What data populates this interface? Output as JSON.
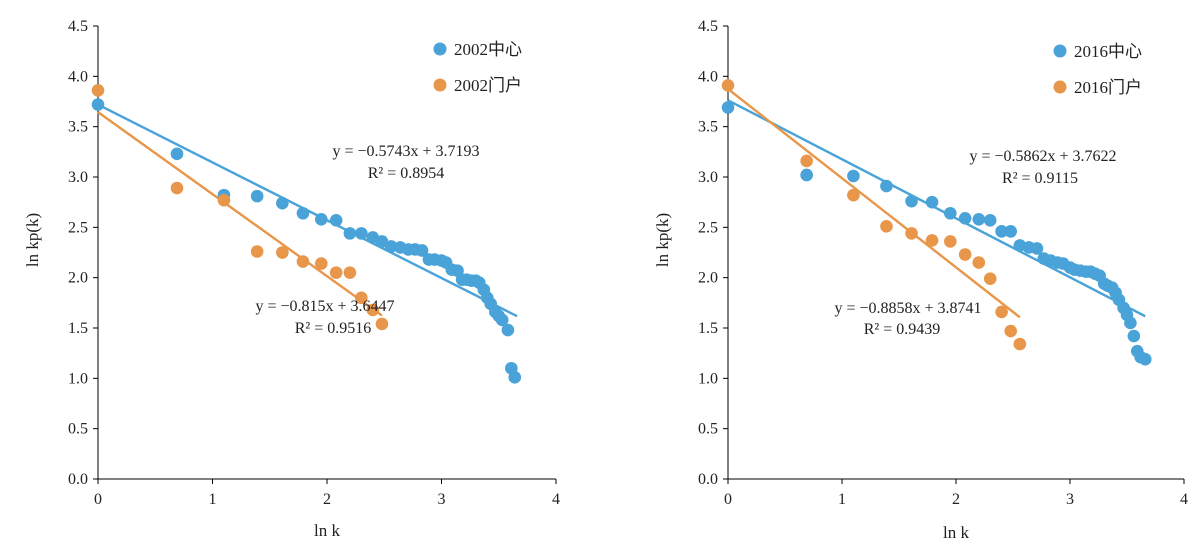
{
  "chart_data": [
    {
      "type": "scatter",
      "xlabel": "ln k",
      "ylabel": "ln kp(k)",
      "xlim": [
        0,
        4
      ],
      "ylim": [
        0,
        4.5
      ],
      "x_ticks": [
        "0",
        "1",
        "2",
        "3",
        "4"
      ],
      "y_ticks": [
        "0.0",
        "0.5",
        "1.0",
        "1.5",
        "2.0",
        "2.5",
        "3.0",
        "3.5",
        "4.0",
        "4.5"
      ],
      "grid": false,
      "legend_position": "top-right",
      "series": [
        {
          "name": "2002中心",
          "color": "#4aa3d8",
          "points": [
            [
              0,
              3.72
            ],
            [
              0.69,
              3.23
            ],
            [
              1.1,
              2.82
            ],
            [
              1.39,
              2.81
            ],
            [
              1.61,
              2.74
            ],
            [
              1.79,
              2.64
            ],
            [
              1.95,
              2.58
            ],
            [
              2.08,
              2.57
            ],
            [
              2.2,
              2.44
            ],
            [
              2.3,
              2.44
            ],
            [
              2.4,
              2.4
            ],
            [
              2.48,
              2.36
            ],
            [
              2.56,
              2.31
            ],
            [
              2.64,
              2.3
            ],
            [
              2.71,
              2.28
            ],
            [
              2.77,
              2.28
            ],
            [
              2.83,
              2.27
            ],
            [
              2.89,
              2.18
            ],
            [
              2.94,
              2.18
            ],
            [
              3.0,
              2.17
            ],
            [
              3.04,
              2.15
            ],
            [
              3.09,
              2.08
            ],
            [
              3.14,
              2.07
            ],
            [
              3.18,
              1.98
            ],
            [
              3.22,
              1.98
            ],
            [
              3.26,
              1.97
            ],
            [
              3.3,
              1.97
            ],
            [
              3.33,
              1.95
            ],
            [
              3.37,
              1.88
            ],
            [
              3.4,
              1.8
            ],
            [
              3.43,
              1.74
            ],
            [
              3.47,
              1.66
            ],
            [
              3.5,
              1.62
            ],
            [
              3.53,
              1.58
            ],
            [
              3.58,
              1.48
            ],
            [
              3.61,
              1.1
            ],
            [
              3.64,
              1.01
            ]
          ],
          "fit": {
            "slope": -0.5743,
            "intercept": 3.7193,
            "x_range": [
              0,
              3.66
            ]
          }
        },
        {
          "name": "2002门户",
          "color": "#e8964a",
          "points": [
            [
              0,
              3.86
            ],
            [
              0.69,
              2.89
            ],
            [
              1.1,
              2.77
            ],
            [
              1.39,
              2.26
            ],
            [
              1.61,
              2.25
            ],
            [
              1.79,
              2.16
            ],
            [
              1.95,
              2.14
            ],
            [
              2.08,
              2.05
            ],
            [
              2.2,
              2.05
            ],
            [
              2.3,
              1.8
            ],
            [
              2.4,
              1.68
            ],
            [
              2.48,
              1.54
            ]
          ],
          "fit": {
            "slope": -0.815,
            "intercept": 3.6447,
            "x_range": [
              0,
              2.48
            ]
          }
        }
      ],
      "annotations": [
        {
          "equation": "y = −0.5743x + 3.7193",
          "r2": "R² = 0.8954"
        },
        {
          "equation": "y = −0.815x + 3.6447",
          "r2": "R² = 0.9516"
        }
      ]
    },
    {
      "type": "scatter",
      "xlabel": "ln k",
      "ylabel": "ln kp(k)",
      "xlim": [
        0,
        4
      ],
      "ylim": [
        0,
        4.5
      ],
      "x_ticks": [
        "0",
        "1",
        "2",
        "3",
        "4"
      ],
      "y_ticks": [
        "0.0",
        "0.5",
        "1.0",
        "1.5",
        "2.0",
        "2.5",
        "3.0",
        "3.5",
        "4.0",
        "4.5"
      ],
      "grid": false,
      "legend_position": "top-right",
      "series": [
        {
          "name": "2016中心",
          "color": "#4aa3d8",
          "points": [
            [
              0,
              3.69
            ],
            [
              0.69,
              3.02
            ],
            [
              1.1,
              3.01
            ],
            [
              1.39,
              2.91
            ],
            [
              1.61,
              2.76
            ],
            [
              1.79,
              2.75
            ],
            [
              1.95,
              2.64
            ],
            [
              2.08,
              2.59
            ],
            [
              2.2,
              2.58
            ],
            [
              2.3,
              2.57
            ],
            [
              2.4,
              2.46
            ],
            [
              2.48,
              2.46
            ],
            [
              2.56,
              2.32
            ],
            [
              2.64,
              2.3
            ],
            [
              2.71,
              2.29
            ],
            [
              2.77,
              2.19
            ],
            [
              2.83,
              2.17
            ],
            [
              2.89,
              2.15
            ],
            [
              2.94,
              2.14
            ],
            [
              3.0,
              2.1
            ],
            [
              3.04,
              2.08
            ],
            [
              3.09,
              2.07
            ],
            [
              3.14,
              2.06
            ],
            [
              3.18,
              2.06
            ],
            [
              3.22,
              2.04
            ],
            [
              3.26,
              2.02
            ],
            [
              3.3,
              1.94
            ],
            [
              3.33,
              1.92
            ],
            [
              3.37,
              1.9
            ],
            [
              3.4,
              1.85
            ],
            [
              3.43,
              1.78
            ],
            [
              3.47,
              1.7
            ],
            [
              3.5,
              1.63
            ],
            [
              3.53,
              1.55
            ],
            [
              3.56,
              1.42
            ],
            [
              3.59,
              1.27
            ],
            [
              3.62,
              1.21
            ],
            [
              3.66,
              1.19
            ]
          ],
          "fit": {
            "slope": -0.5862,
            "intercept": 3.7622,
            "x_range": [
              0,
              3.66
            ]
          }
        },
        {
          "name": "2016门户",
          "color": "#e8964a",
          "points": [
            [
              0,
              3.91
            ],
            [
              0.69,
              3.16
            ],
            [
              1.1,
              2.82
            ],
            [
              1.39,
              2.51
            ],
            [
              1.61,
              2.44
            ],
            [
              1.79,
              2.37
            ],
            [
              1.95,
              2.36
            ],
            [
              2.08,
              2.23
            ],
            [
              2.2,
              2.15
            ],
            [
              2.3,
              1.99
            ],
            [
              2.4,
              1.66
            ],
            [
              2.48,
              1.47
            ],
            [
              2.56,
              1.34
            ]
          ],
          "fit": {
            "slope": -0.8858,
            "intercept": 3.8741,
            "x_range": [
              0,
              2.56
            ]
          }
        }
      ],
      "annotations": [
        {
          "equation": "y = −0.5862x + 3.7622",
          "r2": "R² = 0.9115"
        },
        {
          "equation": "y = −0.8858x + 3.8741",
          "r2": "R² = 0.9439"
        }
      ]
    }
  ]
}
